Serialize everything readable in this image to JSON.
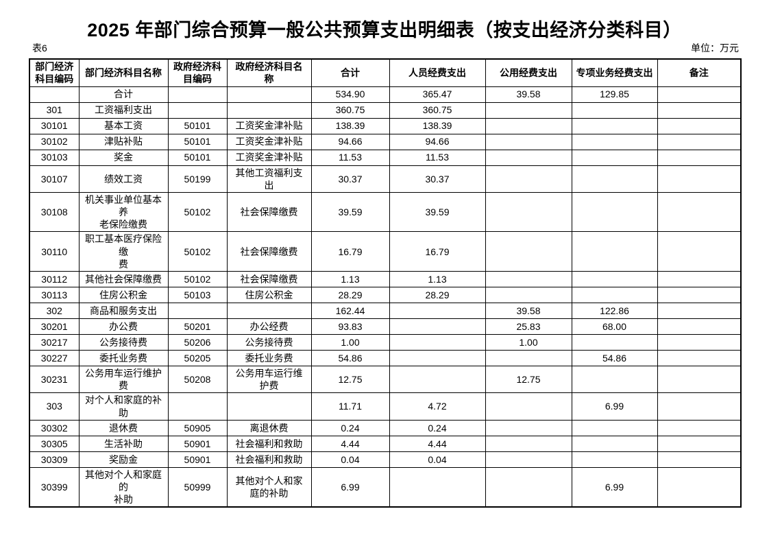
{
  "page": {
    "title": "2025 年部门综合预算一般公共预算支出明细表（按支出经济分类科目）",
    "table_label": "表6",
    "unit_label": "单位：万元"
  },
  "table": {
    "headers": [
      "部门经济\n科目编码",
      "部门经济科目名称",
      "政府经济科\n目编码",
      "政府经济科目名\n称",
      "合计",
      "人员经费支出",
      "公用经费支出",
      "专项业务经费支出",
      "备注"
    ],
    "rows": [
      {
        "code": "",
        "name": "合计",
        "gov_code": "",
        "gov_name": "",
        "total": "534.90",
        "personnel": "365.47",
        "public_funds": "39.58",
        "special": "129.85",
        "remark": ""
      },
      {
        "code": "301",
        "name": "工资福利支出",
        "gov_code": "",
        "gov_name": "",
        "total": "360.75",
        "personnel": "360.75",
        "public_funds": "",
        "special": "",
        "remark": ""
      },
      {
        "code": "30101",
        "name": "基本工资",
        "gov_code": "50101",
        "gov_name": "工资奖金津补贴",
        "total": "138.39",
        "personnel": "138.39",
        "public_funds": "",
        "special": "",
        "remark": ""
      },
      {
        "code": "30102",
        "name": "津贴补贴",
        "gov_code": "50101",
        "gov_name": "工资奖金津补贴",
        "total": "94.66",
        "personnel": "94.66",
        "public_funds": "",
        "special": "",
        "remark": ""
      },
      {
        "code": "30103",
        "name": "奖金",
        "gov_code": "50101",
        "gov_name": "工资奖金津补贴",
        "total": "11.53",
        "personnel": "11.53",
        "public_funds": "",
        "special": "",
        "remark": ""
      },
      {
        "code": "30107",
        "name": "绩效工资",
        "gov_code": "50199",
        "gov_name": "其他工资福利支\n出",
        "total": "30.37",
        "personnel": "30.37",
        "public_funds": "",
        "special": "",
        "remark": ""
      },
      {
        "code": "30108",
        "name": "机关事业单位基本养\n老保险缴费",
        "gov_code": "50102",
        "gov_name": "社会保障缴费",
        "total": "39.59",
        "personnel": "39.59",
        "public_funds": "",
        "special": "",
        "remark": ""
      },
      {
        "code": "30110",
        "name": "职工基本医疗保险缴\n费",
        "gov_code": "50102",
        "gov_name": "社会保障缴费",
        "total": "16.79",
        "personnel": "16.79",
        "public_funds": "",
        "special": "",
        "remark": ""
      },
      {
        "code": "30112",
        "name": "其他社会保障缴费",
        "gov_code": "50102",
        "gov_name": "社会保障缴费",
        "total": "1.13",
        "personnel": "1.13",
        "public_funds": "",
        "special": "",
        "remark": ""
      },
      {
        "code": "30113",
        "name": "住房公积金",
        "gov_code": "50103",
        "gov_name": "住房公积金",
        "total": "28.29",
        "personnel": "28.29",
        "public_funds": "",
        "special": "",
        "remark": ""
      },
      {
        "code": "302",
        "name": "商品和服务支出",
        "gov_code": "",
        "gov_name": "",
        "total": "162.44",
        "personnel": "",
        "public_funds": "39.58",
        "special": "122.86",
        "remark": ""
      },
      {
        "code": "30201",
        "name": "办公费",
        "gov_code": "50201",
        "gov_name": "办公经费",
        "total": "93.83",
        "personnel": "",
        "public_funds": "25.83",
        "special": "68.00",
        "remark": ""
      },
      {
        "code": "30217",
        "name": "公务接待费",
        "gov_code": "50206",
        "gov_name": "公务接待费",
        "total": "1.00",
        "personnel": "",
        "public_funds": "1.00",
        "special": "",
        "remark": ""
      },
      {
        "code": "30227",
        "name": "委托业务费",
        "gov_code": "50205",
        "gov_name": "委托业务费",
        "total": "54.86",
        "personnel": "",
        "public_funds": "",
        "special": "54.86",
        "remark": ""
      },
      {
        "code": "30231",
        "name": "公务用车运行维护费",
        "gov_code": "50208",
        "gov_name": "公务用车运行维\n护费",
        "total": "12.75",
        "personnel": "",
        "public_funds": "12.75",
        "special": "",
        "remark": ""
      },
      {
        "code": "303",
        "name": "对个人和家庭的补助",
        "gov_code": "",
        "gov_name": "",
        "total": "11.71",
        "personnel": "4.72",
        "public_funds": "",
        "special": "6.99",
        "remark": ""
      },
      {
        "code": "30302",
        "name": "退休费",
        "gov_code": "50905",
        "gov_name": "离退休费",
        "total": "0.24",
        "personnel": "0.24",
        "public_funds": "",
        "special": "",
        "remark": ""
      },
      {
        "code": "30305",
        "name": "生活补助",
        "gov_code": "50901",
        "gov_name": "社会福利和救助",
        "total": "4.44",
        "personnel": "4.44",
        "public_funds": "",
        "special": "",
        "remark": ""
      },
      {
        "code": "30309",
        "name": "奖励金",
        "gov_code": "50901",
        "gov_name": "社会福利和救助",
        "total": "0.04",
        "personnel": "0.04",
        "public_funds": "",
        "special": "",
        "remark": ""
      },
      {
        "code": "30399",
        "name": "其他对个人和家庭的\n补助",
        "gov_code": "50999",
        "gov_name": "其他对个人和家\n庭的补助",
        "total": "6.99",
        "personnel": "",
        "public_funds": "",
        "special": "6.99",
        "remark": ""
      }
    ]
  }
}
